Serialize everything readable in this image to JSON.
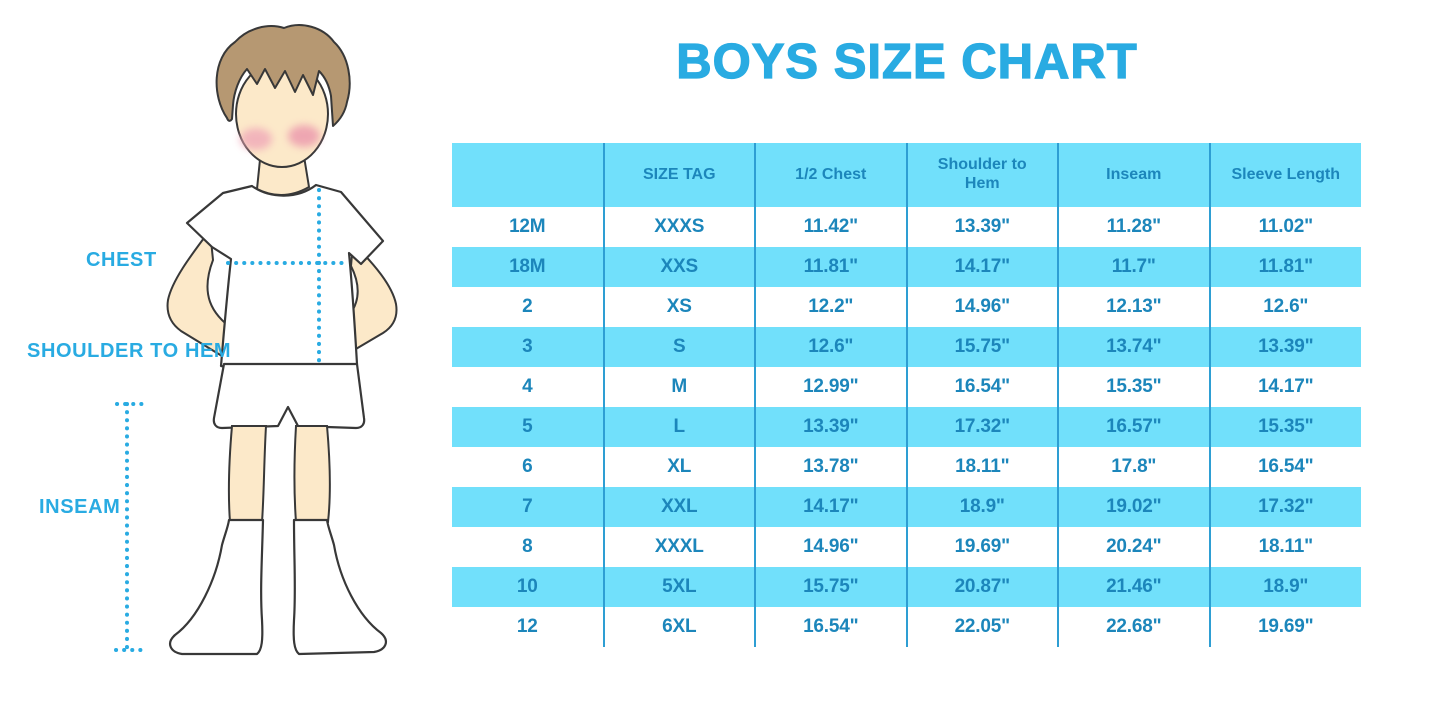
{
  "title": "BOYS SIZE CHART",
  "colors": {
    "accent_blue": "#29abe2",
    "stripe_cyan": "#71e0fb",
    "divider_blue": "#2e9ed3",
    "table_text_blue": "#1c86bb",
    "skin": "#fce9c9",
    "hair": "#b69872",
    "blush": "#f0a8b8",
    "outline": "#383838"
  },
  "figure": {
    "labels": {
      "chest": "CHEST",
      "shoulder_to_hem": "SHOULDER TO HEM",
      "inseam": "INSEAM"
    }
  },
  "chart_data": {
    "type": "table",
    "title": "BOYS SIZE CHART",
    "columns": [
      "",
      "SIZE TAG",
      "1/2 Chest",
      "Shoulder to Hem",
      "Inseam",
      "Sleeve Length"
    ],
    "rows": [
      [
        "12M",
        "XXXS",
        "11.42\"",
        "13.39\"",
        "11.28\"",
        "11.02\""
      ],
      [
        "18M",
        "XXS",
        "11.81\"",
        "14.17\"",
        "11.7\"",
        "11.81\""
      ],
      [
        "2",
        "XS",
        "12.2\"",
        "14.96\"",
        "12.13\"",
        "12.6\""
      ],
      [
        "3",
        "S",
        "12.6\"",
        "15.75\"",
        "13.74\"",
        "13.39\""
      ],
      [
        "4",
        "M",
        "12.99\"",
        "16.54\"",
        "15.35\"",
        "14.17\""
      ],
      [
        "5",
        "L",
        "13.39\"",
        "17.32\"",
        "16.57\"",
        "15.35\""
      ],
      [
        "6",
        "XL",
        "13.78\"",
        "18.11\"",
        "17.8\"",
        "16.54\""
      ],
      [
        "7",
        "XXL",
        "14.17\"",
        "18.9\"",
        "19.02\"",
        "17.32\""
      ],
      [
        "8",
        "XXXL",
        "14.96\"",
        "19.69\"",
        "20.24\"",
        "18.11\""
      ],
      [
        "10",
        "5XL",
        "15.75\"",
        "20.87\"",
        "21.46\"",
        "18.9\""
      ],
      [
        "12",
        "6XL",
        "16.54\"",
        "22.05\"",
        "22.68\"",
        "19.69\""
      ]
    ]
  }
}
